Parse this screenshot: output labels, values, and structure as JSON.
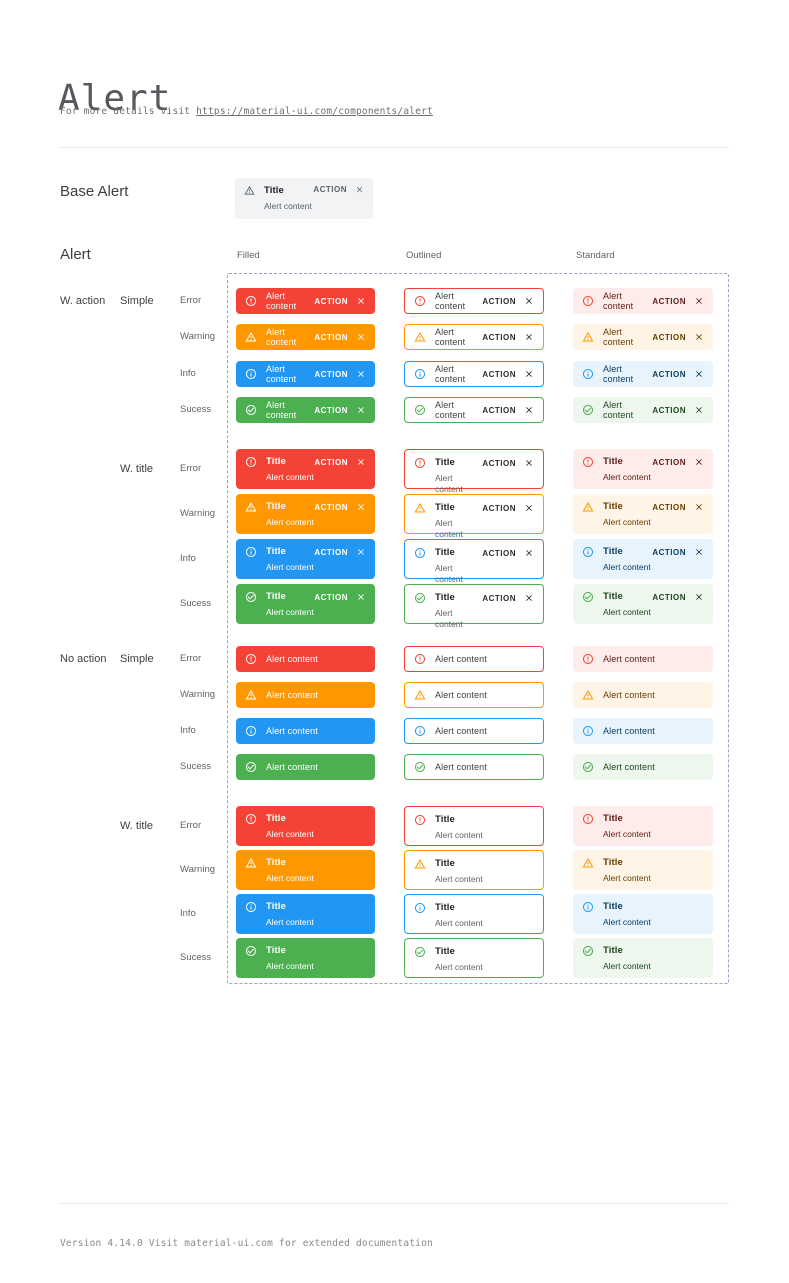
{
  "header": {
    "title": "Alert",
    "subtitle_prefix": "For more details visit ",
    "subtitle_link": "https://material-ui.com/components/alert"
  },
  "base_section": {
    "label": "Base Alert",
    "alert": {
      "icon": "warning-icon",
      "title": "Title",
      "content": "Alert content",
      "action": "ACTION"
    }
  },
  "grid_section": {
    "label": "Alert",
    "columns": [
      {
        "id": "filled",
        "label": "Filled"
      },
      {
        "id": "outlined",
        "label": "Outlined"
      },
      {
        "id": "standard",
        "label": "Standard"
      }
    ],
    "groups": [
      {
        "group_label": "W. action",
        "variant_label": "Simple",
        "with_action": true,
        "with_title": false
      },
      {
        "group_label": "",
        "variant_label": "W. title",
        "with_action": true,
        "with_title": true
      },
      {
        "group_label": "No action",
        "variant_label": "Simple",
        "with_action": false,
        "with_title": false
      },
      {
        "group_label": "",
        "variant_label": "W. title",
        "with_action": false,
        "with_title": true
      }
    ],
    "severities": [
      {
        "id": "error",
        "label": "Error"
      },
      {
        "id": "warning",
        "label": "Warning"
      },
      {
        "id": "info",
        "label": "Info"
      },
      {
        "id": "success",
        "label": "Sucess"
      }
    ],
    "alert_text": {
      "title": "Title",
      "content": "Alert content",
      "action": "ACTION"
    }
  },
  "colors": {
    "error": {
      "main": "#f44336",
      "standard_bg": "#fdecea",
      "standard_text": "#611a15"
    },
    "warning": {
      "main": "#ff9800",
      "standard_bg": "#fff4e5",
      "standard_text": "#663c00"
    },
    "info": {
      "main": "#2196f3",
      "standard_bg": "#e8f4fd",
      "standard_text": "#0d3c61"
    },
    "success": {
      "main": "#4caf50",
      "standard_bg": "#edf7ed",
      "standard_text": "#1e4620"
    },
    "base_bg": "#f1f3f4",
    "outlined_title": "#1f1f1f",
    "outlined_content": "#5f6368",
    "frame_dash": "#9aa3c4"
  },
  "footer": {
    "text": "Version 4.14.0  Visit material-ui.com for extended documentation"
  }
}
